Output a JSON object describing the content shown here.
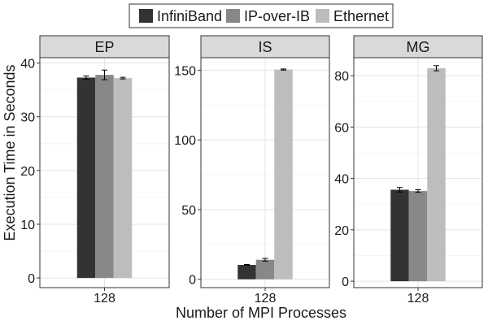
{
  "chart_data": {
    "type": "bar",
    "ylabel": "Execution Time in Seconds",
    "xlabel": "Number of MPI Processes",
    "legend": {
      "placement": "top-center",
      "entries": [
        {
          "name": "InfiniBand",
          "color": "#333333"
        },
        {
          "name": "IP-over-IB",
          "color": "#888888"
        },
        {
          "name": "Ethernet",
          "color": "#bdbdbd"
        }
      ]
    },
    "grid": true,
    "panels": [
      {
        "title": "EP",
        "category": "128",
        "ylim": [
          -1.8,
          41
        ],
        "yticks": [
          0,
          10,
          20,
          30,
          40
        ],
        "bars": [
          {
            "series": "InfiniBand",
            "value": 37.3,
            "error": 0.3
          },
          {
            "series": "IP-over-IB",
            "value": 37.8,
            "error": 0.9
          },
          {
            "series": "Ethernet",
            "value": 37.2,
            "error": 0.15
          }
        ]
      },
      {
        "title": "IS",
        "category": "128",
        "ylim": [
          -6,
          159
        ],
        "yticks": [
          0,
          50,
          100,
          150
        ],
        "bars": [
          {
            "series": "InfiniBand",
            "value": 10.3,
            "error": 0.3
          },
          {
            "series": "IP-over-IB",
            "value": 14.0,
            "error": 1.0
          },
          {
            "series": "Ethernet",
            "value": 150.5,
            "error": 0.4
          }
        ]
      },
      {
        "title": "MG",
        "category": "128",
        "ylim": [
          -2.5,
          87
        ],
        "yticks": [
          0,
          20,
          40,
          60,
          80
        ],
        "bars": [
          {
            "series": "InfiniBand",
            "value": 35.6,
            "error": 0.9
          },
          {
            "series": "IP-over-IB",
            "value": 35.1,
            "error": 0.5
          },
          {
            "series": "Ethernet",
            "value": 82.9,
            "error": 1.0
          }
        ]
      }
    ]
  }
}
